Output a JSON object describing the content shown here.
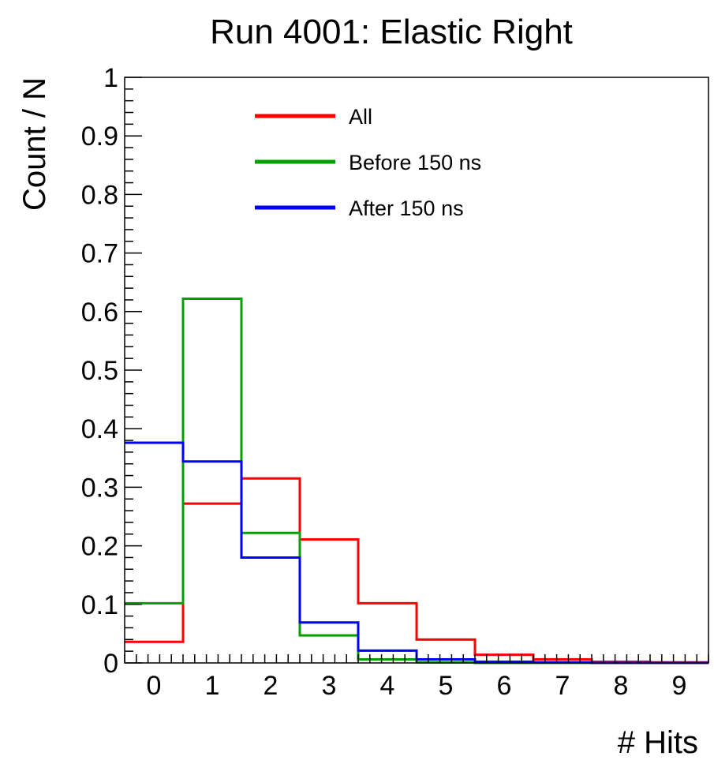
{
  "chart_data": {
    "type": "line",
    "subtype": "step-histogram",
    "title": "Run 4001: Elastic Right",
    "xlabel": "# Hits",
    "ylabel": "Count / N",
    "xlim": [
      -0.5,
      9.5
    ],
    "ylim": [
      0,
      1
    ],
    "x_ticks": [
      "0",
      "1",
      "2",
      "3",
      "4",
      "5",
      "6",
      "7",
      "8",
      "9"
    ],
    "y_ticks": [
      "0",
      "0.1",
      "0.2",
      "0.3",
      "0.4",
      "0.5",
      "0.6",
      "0.7",
      "0.8",
      "0.9",
      "1"
    ],
    "grid": false,
    "legend_position": "top-center",
    "x": [
      0,
      1,
      2,
      3,
      4,
      5,
      6,
      7,
      8,
      9
    ],
    "series": [
      {
        "name": "All",
        "color": "#ff0000",
        "values": [
          0.036,
          0.272,
          0.315,
          0.211,
          0.102,
          0.04,
          0.014,
          0.006,
          0.002,
          0.001
        ]
      },
      {
        "name": "Before 150 ns",
        "color": "#00a000",
        "values": [
          0.102,
          0.622,
          0.222,
          0.047,
          0.006,
          0.001,
          0.0,
          0.0,
          0.0,
          0.0
        ]
      },
      {
        "name": "After 150 ns",
        "color": "#0000ff",
        "values": [
          0.376,
          0.344,
          0.18,
          0.069,
          0.021,
          0.006,
          0.002,
          0.001,
          0.0,
          0.0
        ]
      }
    ]
  }
}
